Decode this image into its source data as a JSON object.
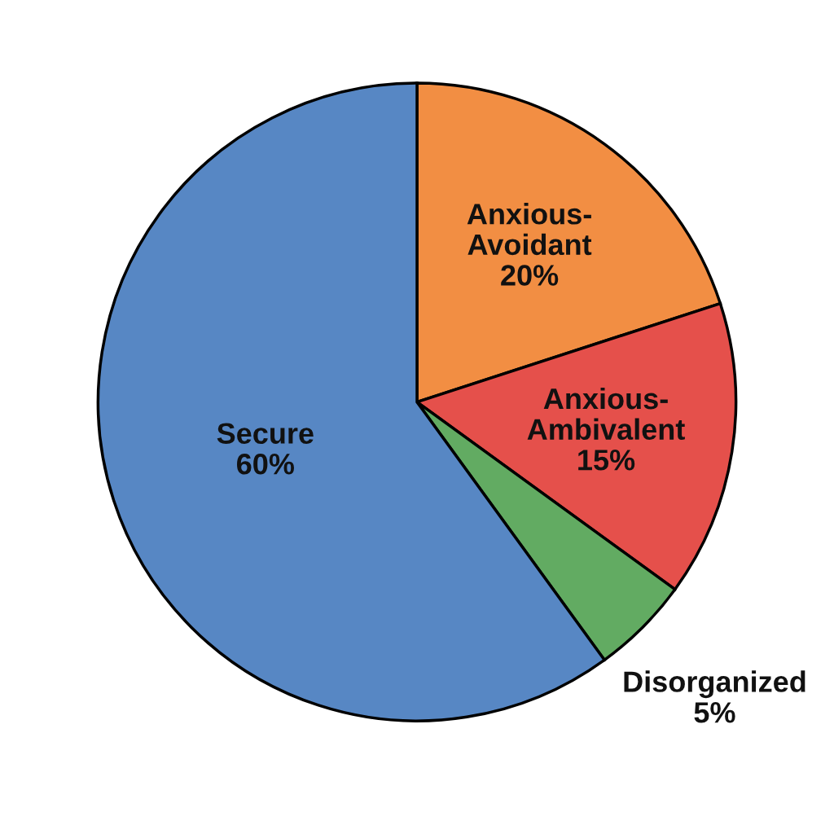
{
  "chart_data": {
    "type": "pie",
    "categories": [
      "Anxious-Avoidant",
      "Anxious-Ambivalent",
      "Disorganized",
      "Secure"
    ],
    "values": [
      20,
      15,
      5,
      60
    ],
    "colors": [
      "#f28e43",
      "#e5504b",
      "#62ab62",
      "#5787c4"
    ],
    "value_labels": [
      "20%",
      "15%",
      "5%",
      "60%"
    ]
  }
}
